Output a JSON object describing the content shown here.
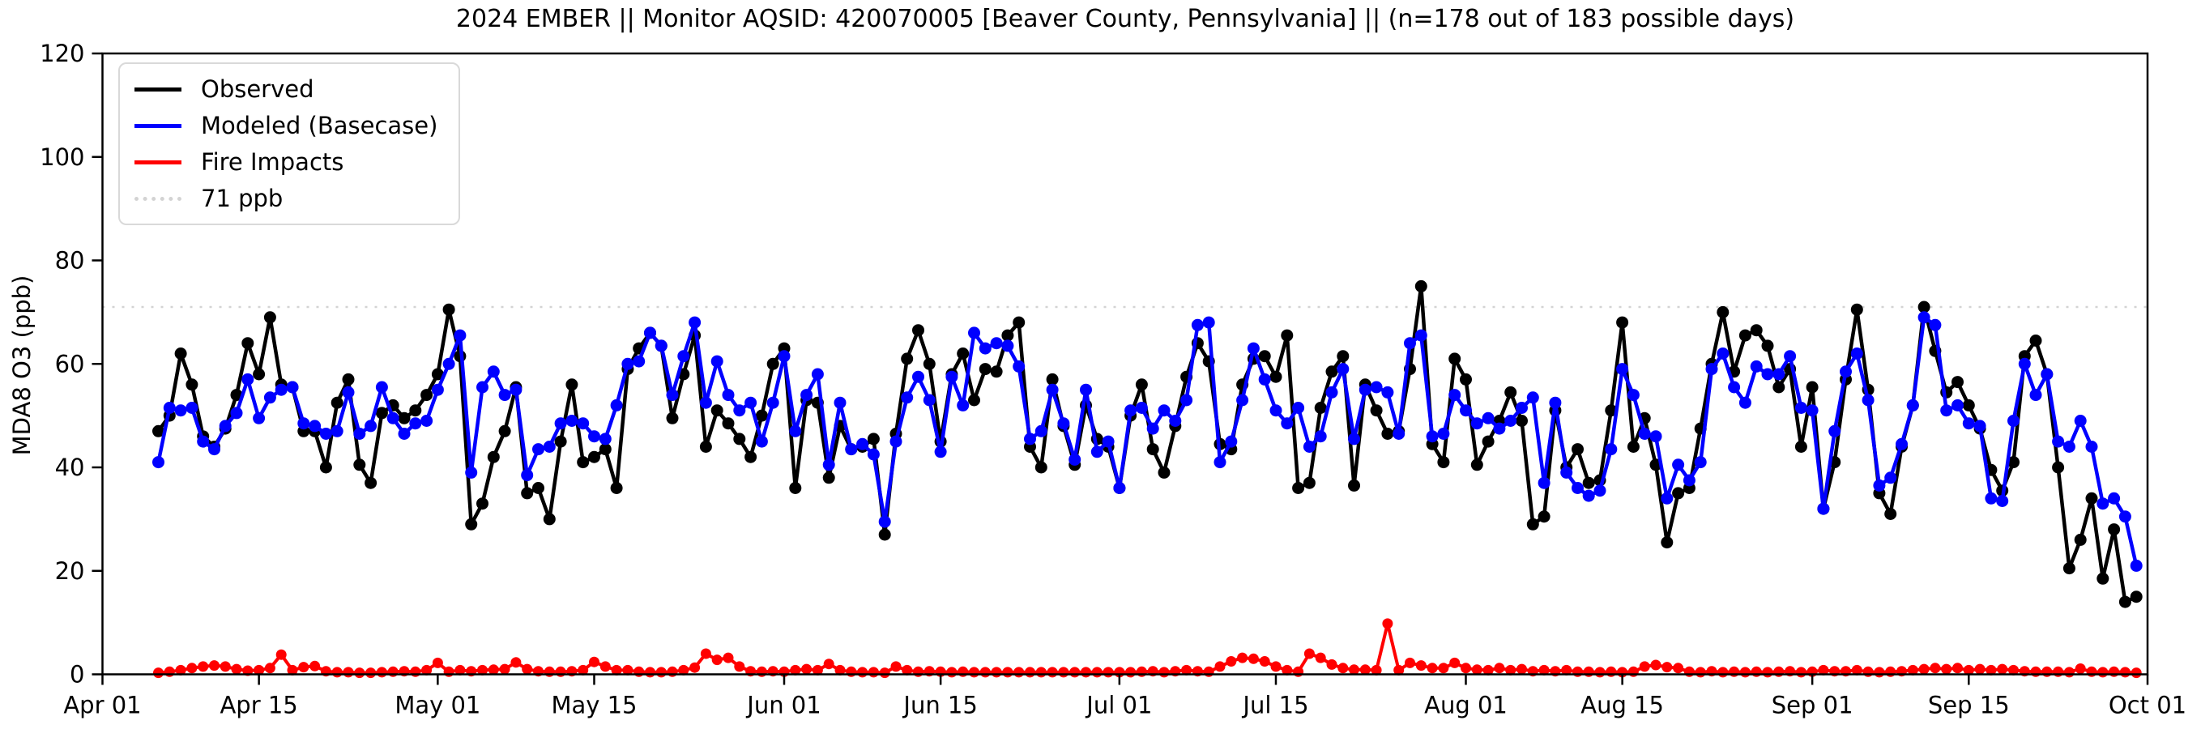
{
  "title": "2024 EMBER || Monitor AQSID: 420070005 [Beaver County, Pennsylvania] || (n=178 out of 183 possible days)",
  "legend": {
    "items": [
      {
        "label": "Observed",
        "color": "#000000",
        "style": "solid"
      },
      {
        "label": "Modeled (Basecase)",
        "color": "#0000ff",
        "style": "solid"
      },
      {
        "label": "Fire Impacts",
        "color": "#ff0000",
        "style": "solid"
      },
      {
        "label": "71 ppb",
        "color": "#d3d3d3",
        "style": "dotted"
      }
    ]
  },
  "chart_data": {
    "type": "line",
    "title": "2024 EMBER || Monitor AQSID: 420070005 [Beaver County, Pennsylvania] || (n=178 out of 183 possible days)",
    "xlabel": "",
    "ylabel": "MDA8 O3 (ppb)",
    "ylim": [
      0,
      120
    ],
    "yticks": [
      0,
      20,
      40,
      60,
      80,
      100,
      120
    ],
    "grid": false,
    "legend_position": "upper left",
    "threshold": {
      "value": 71,
      "label": "71 ppb",
      "color": "#d3d3d3",
      "linestyle": "dotted"
    },
    "x_axis": {
      "start_label": "Apr 01",
      "end_label": "Oct 01",
      "total_days": 183,
      "ticks": [
        {
          "day": 0,
          "label": "Apr 01"
        },
        {
          "day": 14,
          "label": "Apr 15"
        },
        {
          "day": 30,
          "label": "May 01"
        },
        {
          "day": 44,
          "label": "May 15"
        },
        {
          "day": 61,
          "label": "Jun 01"
        },
        {
          "day": 75,
          "label": "Jun 15"
        },
        {
          "day": 91,
          "label": "Jul 01"
        },
        {
          "day": 105,
          "label": "Jul 15"
        },
        {
          "day": 122,
          "label": "Aug 01"
        },
        {
          "day": 136,
          "label": "Aug 15"
        },
        {
          "day": 153,
          "label": "Sep 01"
        },
        {
          "day": 167,
          "label": "Sep 15"
        },
        {
          "day": 183,
          "label": "Oct 01"
        }
      ]
    },
    "series": [
      {
        "name": "Observed",
        "color": "#000000",
        "values": [
          null,
          null,
          null,
          null,
          null,
          47,
          50,
          62,
          56,
          46,
          44,
          47.5,
          54,
          64,
          58,
          69,
          56,
          55.5,
          47,
          47,
          40,
          52.5,
          57,
          40.5,
          37,
          50.5,
          52,
          49.5,
          51,
          54,
          58,
          70.5,
          61.5,
          29,
          33,
          42,
          47,
          55.5,
          35,
          36,
          30,
          45,
          56,
          41,
          42,
          43.5,
          36,
          59,
          63,
          66,
          63.5,
          49.5,
          58,
          65.5,
          44,
          51,
          48.5,
          45.5,
          42,
          50,
          60,
          63,
          36,
          53,
          52.5,
          38,
          48,
          43.5,
          44,
          45.5,
          27,
          46.5,
          61,
          66.5,
          60,
          45,
          58,
          62,
          53,
          59,
          58.5,
          65.5,
          68,
          44,
          40,
          57,
          48,
          40.5,
          52,
          45.5,
          44,
          36,
          50,
          56,
          43.5,
          39,
          48,
          57.5,
          64,
          60.5,
          44.5,
          43.5,
          56,
          61,
          61.5,
          57.5,
          65.5,
          36,
          37,
          51.5,
          58.5,
          61.5,
          36.5,
          56,
          51,
          46.5,
          47,
          59,
          75,
          44.5,
          41,
          61,
          57,
          40.5,
          45,
          49,
          54.5,
          49,
          29,
          30.5,
          51,
          40,
          43.5,
          37,
          37.5,
          51,
          68,
          44,
          49.5,
          40.5,
          25.5,
          35,
          36,
          47.5,
          60,
          70,
          58.5,
          65.5,
          66.5,
          63.5,
          55.5,
          59,
          44,
          55.5,
          32,
          41,
          57,
          70.5,
          55,
          35,
          31,
          44,
          52,
          71,
          62.5,
          54.5,
          56.5,
          52,
          47.5,
          39.5,
          35.5,
          41,
          61.5,
          64.5,
          58,
          40,
          20.5,
          26,
          34,
          18.5,
          28,
          14,
          15
        ]
      },
      {
        "name": "Modeled (Basecase)",
        "color": "#0000ff",
        "values": [
          null,
          null,
          null,
          null,
          null,
          41,
          51.5,
          51,
          51.5,
          45,
          43.5,
          48,
          50.5,
          57,
          49.5,
          53.5,
          55,
          55.5,
          48.5,
          48,
          46.5,
          47,
          54.5,
          46.5,
          48,
          55.5,
          49.5,
          46.5,
          48.5,
          49,
          55,
          60,
          65.5,
          39,
          55.5,
          58.5,
          54,
          55,
          38.5,
          43.5,
          44,
          48.5,
          49,
          48.5,
          46,
          45.5,
          52,
          60,
          60.5,
          66,
          63.5,
          54,
          61.5,
          68,
          52.5,
          60.5,
          54,
          51,
          52.5,
          45,
          52.5,
          61.5,
          47,
          54,
          58,
          40.5,
          52.5,
          43.5,
          44.5,
          42.5,
          29.5,
          45,
          53.5,
          57.5,
          53,
          43,
          57.5,
          52,
          66,
          63,
          64,
          63.5,
          59.5,
          45.5,
          47,
          55,
          48.5,
          41.5,
          55,
          43,
          45,
          36,
          51,
          51.5,
          47.5,
          51,
          49,
          53,
          67.5,
          68,
          41,
          45,
          53,
          63,
          57,
          51,
          48.5,
          51.5,
          44,
          46,
          54.5,
          59,
          45.5,
          55,
          55.5,
          54.5,
          46.5,
          64,
          65.5,
          46,
          46.5,
          54,
          51,
          48.5,
          49.5,
          47.5,
          49,
          51.5,
          53.5,
          37,
          52.5,
          39,
          36,
          34.5,
          35.5,
          43.5,
          59,
          54,
          46.5,
          46,
          34,
          40.5,
          37.5,
          41,
          59,
          62,
          55.5,
          52.5,
          59.5,
          58,
          58,
          61.5,
          51.5,
          51,
          32,
          47,
          58.5,
          62,
          53,
          36.5,
          38,
          44.5,
          52,
          69,
          67.5,
          51,
          52,
          48.5,
          48,
          34,
          33.5,
          49,
          60,
          54,
          58,
          45,
          44,
          49,
          44,
          33,
          34,
          30.5,
          21
        ]
      },
      {
        "name": "Fire Impacts",
        "color": "#ff0000",
        "values": [
          null,
          null,
          null,
          null,
          null,
          0.3,
          0.5,
          0.8,
          1.2,
          1.5,
          1.7,
          1.5,
          1,
          0.7,
          0.8,
          1.2,
          3.8,
          0.8,
          1.4,
          1.6,
          0.6,
          0.4,
          0.4,
          0.3,
          0.3,
          0.4,
          0.5,
          0.6,
          0.5,
          0.8,
          2.2,
          0.5,
          0.8,
          0.6,
          0.8,
          0.9,
          1,
          2.3,
          1,
          0.6,
          0.5,
          0.5,
          0.6,
          0.8,
          2.4,
          1.5,
          0.8,
          0.8,
          0.5,
          0.4,
          0.4,
          0.5,
          0.8,
          1.3,
          4,
          2.8,
          3.2,
          1.5,
          0.6,
          0.5,
          0.6,
          0.5,
          0.8,
          1,
          0.8,
          2,
          0.8,
          0.5,
          0.4,
          0.4,
          0.3,
          1.5,
          0.8,
          0.5,
          0.6,
          0.5,
          0.4,
          0.5,
          0.4,
          0.4,
          0.4,
          0.4,
          0.4,
          0.4,
          0.4,
          0.4,
          0.4,
          0.4,
          0.4,
          0.4,
          0.4,
          0.4,
          0.4,
          0.5,
          0.6,
          0.4,
          0.6,
          0.8,
          0.6,
          0.5,
          1.5,
          2.5,
          3.2,
          3,
          2.5,
          1.5,
          0.8,
          0.5,
          4,
          3.2,
          1.9,
          1.2,
          0.9,
          0.9,
          0.8,
          9.8,
          0.8,
          2.2,
          1.7,
          1.2,
          1.2,
          2.2,
          1.2,
          0.9,
          0.8,
          1.2,
          0.8,
          1,
          0.6,
          0.8,
          0.6,
          0.8,
          0.5,
          0.5,
          0.4,
          0.5,
          0.4,
          0.5,
          1.5,
          1.8,
          1.4,
          1.2,
          0.5,
          0.4,
          0.6,
          0.4,
          0.5,
          0.4,
          0.5,
          0.4,
          0.5,
          0.6,
          0.4,
          0.5,
          0.8,
          0.6,
          0.6,
          0.8,
          0.5,
          0.4,
          0.5,
          0.6,
          0.8,
          1,
          1.2,
          1,
          1.2,
          0.8,
          1,
          0.8,
          1,
          0.8,
          0.6,
          0.5,
          0.5,
          0.5,
          0.4,
          1.1,
          0.5,
          0.4,
          0.5,
          0.4,
          0.3
        ]
      }
    ]
  }
}
